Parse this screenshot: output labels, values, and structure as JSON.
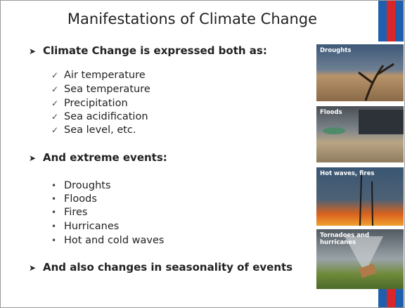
{
  "header": {
    "title": "Manifestations of Climate Change"
  },
  "sections": [
    {
      "heading": "Climate Change is expressed both as:",
      "items": [
        "Air temperature",
        "Sea temperature",
        "Precipitation",
        "Sea acidification",
        "Sea level, etc."
      ]
    },
    {
      "heading": "And extreme events:",
      "items": [
        "Droughts",
        "Floods",
        "Fires",
        "Hurricanes",
        "Hot and cold waves"
      ]
    },
    {
      "heading": "And also changes in seasonality of events",
      "items": []
    }
  ],
  "images": [
    {
      "caption": "Droughts"
    },
    {
      "caption": "Floods"
    },
    {
      "caption": "Hot waves, fires"
    },
    {
      "caption": "Tornadoes and hurricanes"
    }
  ]
}
